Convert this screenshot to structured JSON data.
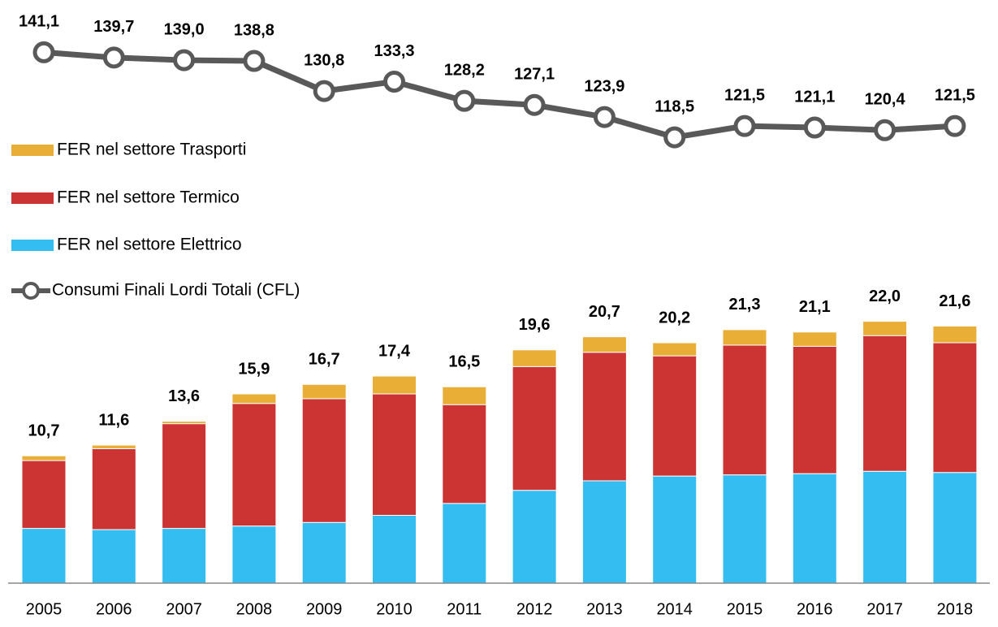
{
  "chart_data": {
    "type": "bar",
    "stacked": true,
    "categories": [
      "2005",
      "2006",
      "2007",
      "2008",
      "2009",
      "2010",
      "2011",
      "2012",
      "2013",
      "2014",
      "2015",
      "2016",
      "2017",
      "2018"
    ],
    "series": [
      {
        "name": "FER nel settore Elettrico",
        "color": "#33bdf0",
        "values": [
          4.6,
          4.5,
          4.6,
          4.8,
          5.1,
          5.7,
          6.7,
          7.8,
          8.6,
          9.0,
          9.1,
          9.2,
          9.4,
          9.3
        ]
      },
      {
        "name": "FER nel settore Termico",
        "color": "#cc3333",
        "values": [
          5.7,
          6.8,
          8.8,
          10.3,
          10.4,
          10.2,
          8.3,
          10.4,
          10.8,
          10.1,
          10.9,
          10.7,
          11.4,
          10.9
        ]
      },
      {
        "name": "FER nel settore Trasporti",
        "color": "#e8ae35",
        "values": [
          0.4,
          0.3,
          0.2,
          0.8,
          1.2,
          1.5,
          1.5,
          1.4,
          1.3,
          1.1,
          1.3,
          1.2,
          1.2,
          1.4
        ]
      },
      {
        "name": "Consumi Finali Lordi Totali (CFL)",
        "color": "#595959",
        "type": "line",
        "axis": "y2",
        "values": [
          141.1,
          139.7,
          139.0,
          138.8,
          130.8,
          133.3,
          128.2,
          127.1,
          123.9,
          118.5,
          121.5,
          121.1,
          120.4,
          121.5
        ],
        "value_labels": [
          "141,1",
          "139,7",
          "139,0",
          "138,8",
          "130,8",
          "133,3",
          "128,2",
          "127,1",
          "123,9",
          "118,5",
          "121,5",
          "121,1",
          "120,4",
          "121,5"
        ]
      }
    ],
    "totals": [
      10.7,
      11.6,
      13.6,
      15.9,
      16.7,
      17.4,
      16.5,
      19.6,
      20.7,
      20.2,
      21.3,
      21.1,
      22.0,
      21.6
    ],
    "total_labels": [
      "10,7",
      "11,6",
      "13,6",
      "15,9",
      "16,7",
      "17,4",
      "16,5",
      "19,6",
      "20,7",
      "20,2",
      "21,3",
      "21,1",
      "22,0",
      "21,6"
    ],
    "ylim": [
      0,
      49
    ],
    "y2lim": [
      0,
      155
    ]
  }
}
